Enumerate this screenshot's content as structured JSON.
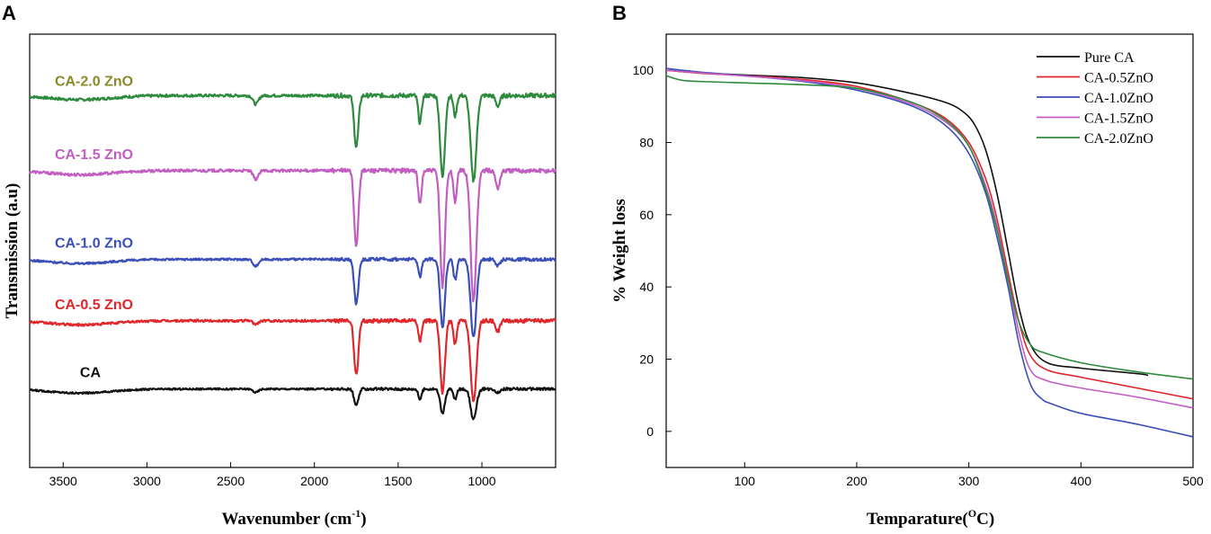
{
  "chart_data": [
    {
      "panel": "A",
      "type": "line",
      "title": "",
      "xlabel_main": "Wavenumber (cm",
      "xlabel_sup": "-1",
      "xlabel_end": ")",
      "ylabel": "Transmission (a.u)",
      "xlim": [
        3700,
        560
      ],
      "x_reversed": true,
      "xticks": [
        3500,
        3000,
        2500,
        2000,
        1500,
        1000
      ],
      "yticks": [],
      "grid": false,
      "legend": "inline labels above each trace",
      "peaks_cm1": [
        2350,
        1750,
        1370,
        1235,
        1160,
        1050,
        905
      ],
      "series": [
        {
          "name": "CA-2.0 ZnO",
          "color": "#2e8b3e",
          "label_color": "#8a8a2a",
          "baseline": 9.4,
          "peak_depths": [
            0.25,
            1.5,
            0.8,
            2.4,
            0.6,
            2.5,
            0.3
          ],
          "noise": 0.08
        },
        {
          "name": "CA-1.5 ZnO",
          "color": "#c25ec2",
          "label_color": "#c25ec2",
          "baseline": 7.2,
          "peak_depths": [
            0.25,
            2.2,
            1.0,
            3.4,
            0.9,
            3.8,
            0.5
          ],
          "noise": 0.08
        },
        {
          "name": "CA-1.0 ZnO",
          "color": "#3b4fb8",
          "label_color": "#3b4fb8",
          "baseline": 4.6,
          "peak_depths": [
            0.2,
            1.3,
            0.5,
            2.0,
            0.6,
            2.3,
            0.2
          ],
          "noise": 0.06
        },
        {
          "name": "CA-0.5 ZnO",
          "color": "#e0282c",
          "label_color": "#e0282c",
          "baseline": 2.8,
          "peak_depths": [
            0.1,
            1.6,
            0.6,
            2.1,
            0.7,
            2.4,
            0.3
          ],
          "noise": 0.07
        },
        {
          "name": "CA",
          "color": "#111111",
          "label_color": "#111111",
          "baseline": 0.8,
          "peak_depths": [
            0.1,
            0.5,
            0.3,
            0.7,
            0.3,
            0.9,
            0.1
          ],
          "noise": 0.05
        }
      ]
    },
    {
      "panel": "B",
      "type": "line",
      "title": "",
      "xlabel_main": "Temparature(",
      "xlabel_sup": "O",
      "xlabel_end": "C)",
      "ylabel": "% Weight loss",
      "xlim": [
        30,
        500
      ],
      "ylim": [
        -10,
        110
      ],
      "xticks": [
        100,
        200,
        300,
        400,
        500
      ],
      "yticks": [
        0,
        20,
        40,
        60,
        80,
        100
      ],
      "grid": false,
      "legend": "top-right",
      "series": [
        {
          "name": "Pure CA",
          "color": "#111111",
          "x": [
            30,
            60,
            100,
            150,
            200,
            250,
            280,
            295,
            305,
            315,
            325,
            335,
            345,
            355,
            370,
            400,
            450,
            460
          ],
          "y": [
            100,
            99.3,
            98.7,
            98,
            96.5,
            93.5,
            91,
            88.5,
            85,
            78,
            66,
            50,
            34,
            24,
            19,
            17.5,
            16,
            15.5
          ]
        },
        {
          "name": "CA-0.5ZnO",
          "color": "#e0282c",
          "x": [
            30,
            60,
            100,
            150,
            200,
            250,
            280,
            300,
            315,
            325,
            335,
            345,
            355,
            370,
            400,
            450,
            500
          ],
          "y": [
            100,
            99.2,
            98.5,
            97.5,
            95.5,
            91,
            86.5,
            80,
            70,
            59,
            44,
            30,
            21,
            17,
            15,
            12,
            9
          ]
        },
        {
          "name": "CA-1.0ZnO",
          "color": "#3b4fb8",
          "x": [
            30,
            60,
            100,
            150,
            200,
            250,
            280,
            300,
            315,
            325,
            335,
            345,
            355,
            365,
            375,
            400,
            450,
            500
          ],
          "y": [
            100.5,
            99.5,
            98.5,
            97,
            94.5,
            90,
            84.5,
            77,
            66,
            54,
            40,
            24,
            13,
            9,
            7.5,
            5,
            2,
            -1.5
          ]
        },
        {
          "name": "CA-1.5ZnO",
          "color": "#c25ec2",
          "x": [
            30,
            60,
            100,
            150,
            200,
            250,
            280,
            300,
            315,
            325,
            335,
            345,
            355,
            370,
            400,
            450,
            500
          ],
          "y": [
            100,
            99.3,
            98.4,
            97.2,
            95,
            90.5,
            85.5,
            79,
            68,
            57,
            42,
            27,
            17,
            14,
            12,
            9.5,
            6.5
          ]
        },
        {
          "name": "CA-2.0ZnO",
          "color": "#2e8b3e",
          "x": [
            30,
            45,
            70,
            100,
            150,
            200,
            250,
            280,
            300,
            315,
            325,
            335,
            345,
            355,
            365,
            400,
            450,
            500
          ],
          "y": [
            98.5,
            97.2,
            96.8,
            96.5,
            96,
            95,
            91,
            86,
            79,
            67,
            56,
            42,
            30,
            24,
            22,
            19,
            16.5,
            14.5
          ]
        }
      ]
    }
  ],
  "panel_labels": {
    "a": "A",
    "b": "B"
  }
}
